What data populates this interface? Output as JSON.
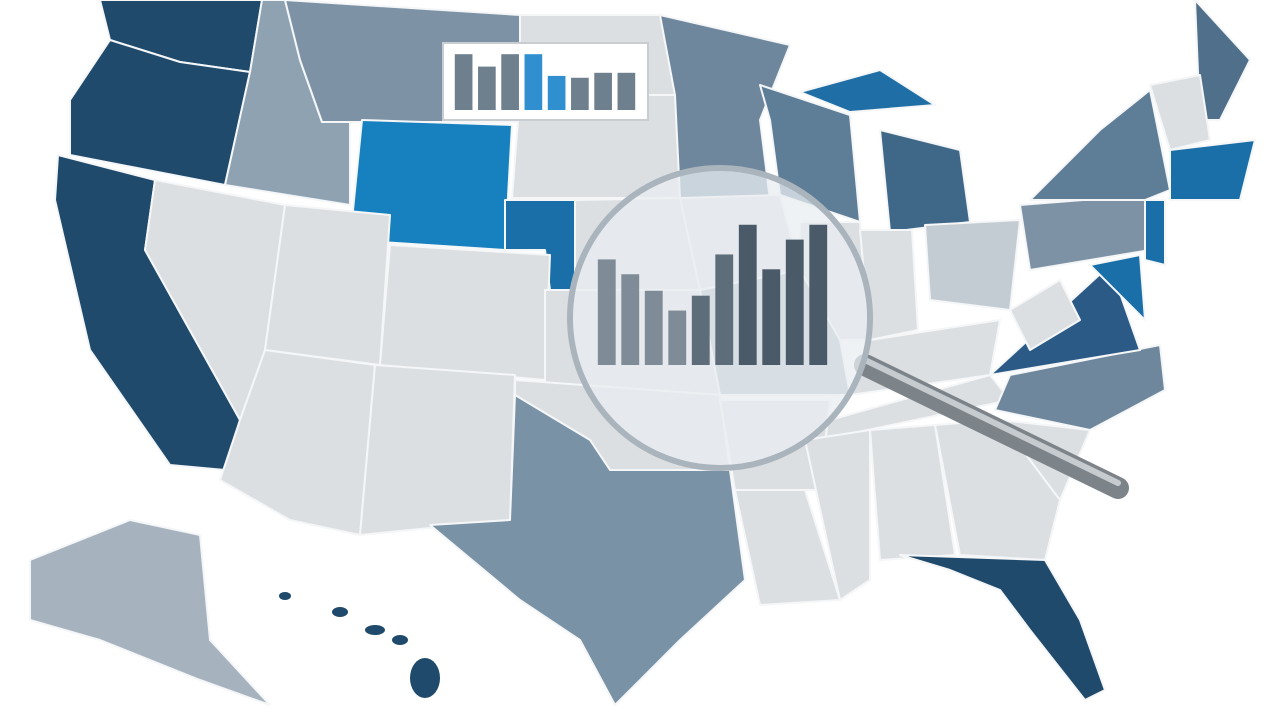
{
  "chart_data": [
    {
      "type": "bar",
      "values": [
        90,
        70,
        90,
        90,
        55,
        52,
        60,
        60
      ],
      "colors": [
        "#6e7f8e",
        "#6e7f8e",
        "#6e7f8e",
        "#2f8fcf",
        "#2f8fcf",
        "#6e7f8e",
        "#6e7f8e",
        "#6e7f8e"
      ],
      "ylim": [
        0,
        100
      ]
    },
    {
      "type": "bar",
      "values": [
        64,
        55,
        45,
        33,
        42,
        67,
        85,
        58,
        76,
        85
      ],
      "colors": [
        "#7f8c97",
        "#7f8c97",
        "#7f8c97",
        "#7f8c97",
        "#5d6d7a",
        "#5d6d7a",
        "#4a5a68",
        "#4a5a68",
        "#4a5a68",
        "#4a5a68"
      ],
      "ylim": [
        0,
        100
      ]
    }
  ]
}
